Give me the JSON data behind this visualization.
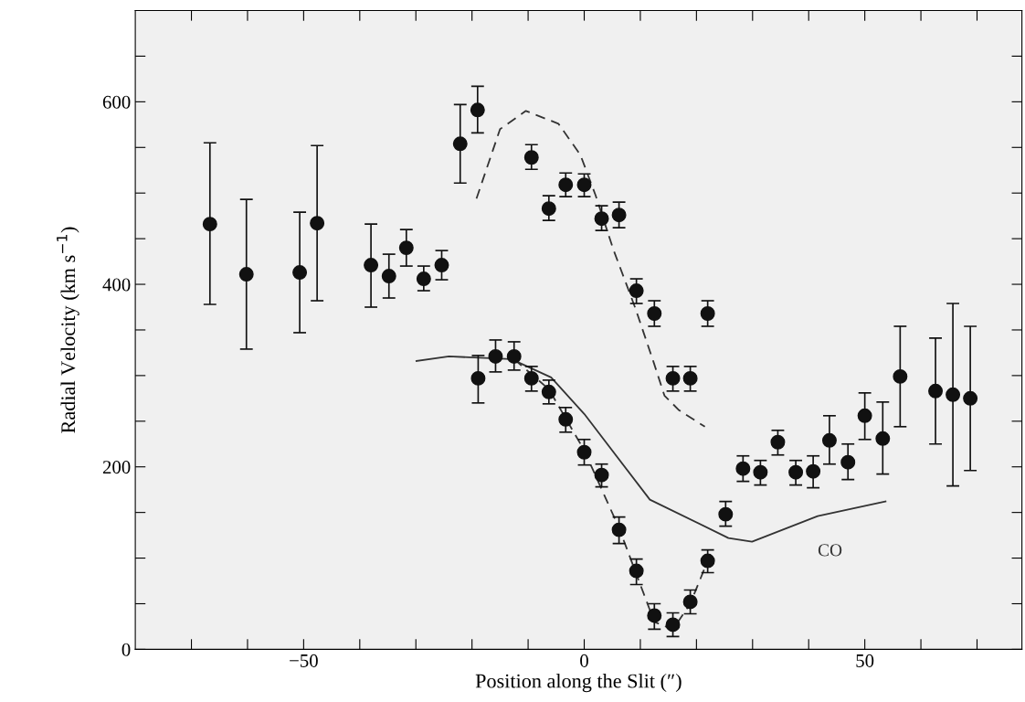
{
  "chart_data": {
    "type": "scatter",
    "xlabel": "Position along the Slit (″)",
    "ylabel": "Radial Velocity (km s$^{−1}$)",
    "xlim": [
      -80,
      78
    ],
    "ylim": [
      0,
      700
    ],
    "xticks": [
      {
        "value": -70,
        "label": null
      },
      {
        "value": -60,
        "label": null
      },
      {
        "value": -50,
        "label": "−50"
      },
      {
        "value": -40,
        "label": null
      },
      {
        "value": -30,
        "label": null
      },
      {
        "value": -20,
        "label": null
      },
      {
        "value": -10,
        "label": null
      },
      0,
      {
        "value": 10,
        "label": null
      },
      {
        "value": 20,
        "label": null
      },
      {
        "value": 30,
        "label": null
      },
      {
        "value": 40,
        "label": null
      },
      50,
      {
        "value": 60,
        "label": null
      },
      {
        "value": 70,
        "label": null
      }
    ],
    "yticks": [
      0,
      {
        "value": 50,
        "label": null
      },
      {
        "value": 100,
        "label": null
      },
      {
        "value": 150,
        "label": null
      },
      200,
      {
        "value": 250,
        "label": null
      },
      {
        "value": 300,
        "label": null
      },
      {
        "value": 350,
        "label": null
      },
      400,
      {
        "value": 450,
        "label": null
      },
      {
        "value": 500,
        "label": null
      },
      {
        "value": 550,
        "label": null
      },
      600,
      {
        "value": 650,
        "label": null
      }
    ],
    "grid": false,
    "series": [
      {
        "color": "#111111",
        "marker": "circle",
        "x": [
          -66.7,
          -60.2,
          -50.7,
          -47.6,
          -38,
          -34.8,
          -31.7,
          -28.6,
          -25.4,
          -22.1,
          -19,
          -9.4,
          -6.3,
          -3.3,
          0,
          3.1,
          6.2,
          9.3,
          12.5,
          15.8,
          18.9,
          22,
          -18.9,
          -15.8,
          -12.5,
          -9.4,
          -6.3,
          -3.3,
          0,
          3.1,
          6.2,
          9.3,
          12.5,
          15.8,
          18.9,
          22,
          25.2,
          28.3,
          31.4,
          34.5,
          37.7,
          40.8,
          43.7,
          47,
          50,
          53.2,
          56.3,
          62.6,
          65.7,
          68.8
        ],
        "values": [
          466,
          411,
          413,
          467,
          421,
          409,
          440,
          406,
          421,
          554,
          591,
          539,
          483,
          509,
          509,
          472,
          476,
          393,
          368,
          297,
          297,
          368,
          297,
          321,
          321,
          297,
          282,
          252,
          216,
          191,
          131,
          86,
          37,
          27,
          52,
          97,
          148,
          198,
          194,
          227,
          194,
          195,
          229,
          205,
          256,
          231,
          299,
          283,
          279,
          275
        ],
        "errors": [
          [
            378,
            555
          ],
          [
            329,
            493
          ],
          [
            347,
            479
          ],
          [
            382,
            552
          ],
          [
            375,
            466
          ],
          [
            385,
            433
          ],
          [
            420,
            460
          ],
          [
            393,
            420
          ],
          [
            405,
            437
          ],
          [
            511,
            597
          ],
          [
            566,
            617
          ],
          [
            526,
            553
          ],
          [
            470,
            497
          ],
          [
            496,
            522
          ],
          [
            496,
            521
          ],
          [
            459,
            486
          ],
          [
            462,
            490
          ],
          [
            379,
            406
          ],
          [
            354,
            382
          ],
          [
            283,
            310
          ],
          [
            283,
            310
          ],
          [
            354,
            382
          ],
          [
            270,
            322
          ],
          [
            304,
            339
          ],
          [
            306,
            337
          ],
          [
            283,
            310
          ],
          [
            269,
            295
          ],
          [
            238,
            265
          ],
          [
            202,
            230
          ],
          [
            178,
            203
          ],
          [
            116,
            145
          ],
          [
            71,
            99
          ],
          [
            22,
            50
          ],
          [
            14,
            40
          ],
          [
            39,
            65
          ],
          [
            84,
            109
          ],
          [
            135,
            162
          ],
          [
            184,
            212
          ],
          [
            180,
            207
          ],
          [
            213,
            240
          ],
          [
            180,
            207
          ],
          [
            177,
            212
          ],
          [
            203,
            256
          ],
          [
            186,
            225
          ],
          [
            230,
            281
          ],
          [
            192,
            271
          ],
          [
            244,
            354
          ],
          [
            225,
            341
          ],
          [
            179,
            379
          ],
          [
            196,
            354
          ]
        ]
      },
      {
        "type": "line",
        "color": "#333333",
        "line_style": "dashed",
        "x": [
          -19.2,
          -15,
          -10.4,
          -4.6,
          -0.7,
          2,
          5.2,
          9.1,
          12.4,
          14.3,
          16.9,
          21.5
        ],
        "values": [
          494,
          570,
          590,
          576,
          542,
          498,
          438,
          374,
          314,
          278,
          262,
          244
        ]
      },
      {
        "type": "line",
        "color": "#333333",
        "line_style": "dashed",
        "x": [
          -12.5,
          -6.3,
          0,
          6.2,
          12.5,
          15.8,
          18.9,
          22
        ],
        "values": [
          318,
          285,
          218,
          133,
          30,
          22,
          50,
          97
        ]
      },
      {
        "type": "line",
        "name": "CO",
        "color": "#333333",
        "line_style": "solid",
        "x": [
          -29.9,
          -24.1,
          -13,
          -5.9,
          0,
          11.7,
          25.7,
          29.9,
          41.6,
          53.7
        ],
        "values": [
          316,
          321,
          318,
          298,
          258,
          164,
          122,
          118,
          146,
          162
        ]
      }
    ]
  }
}
